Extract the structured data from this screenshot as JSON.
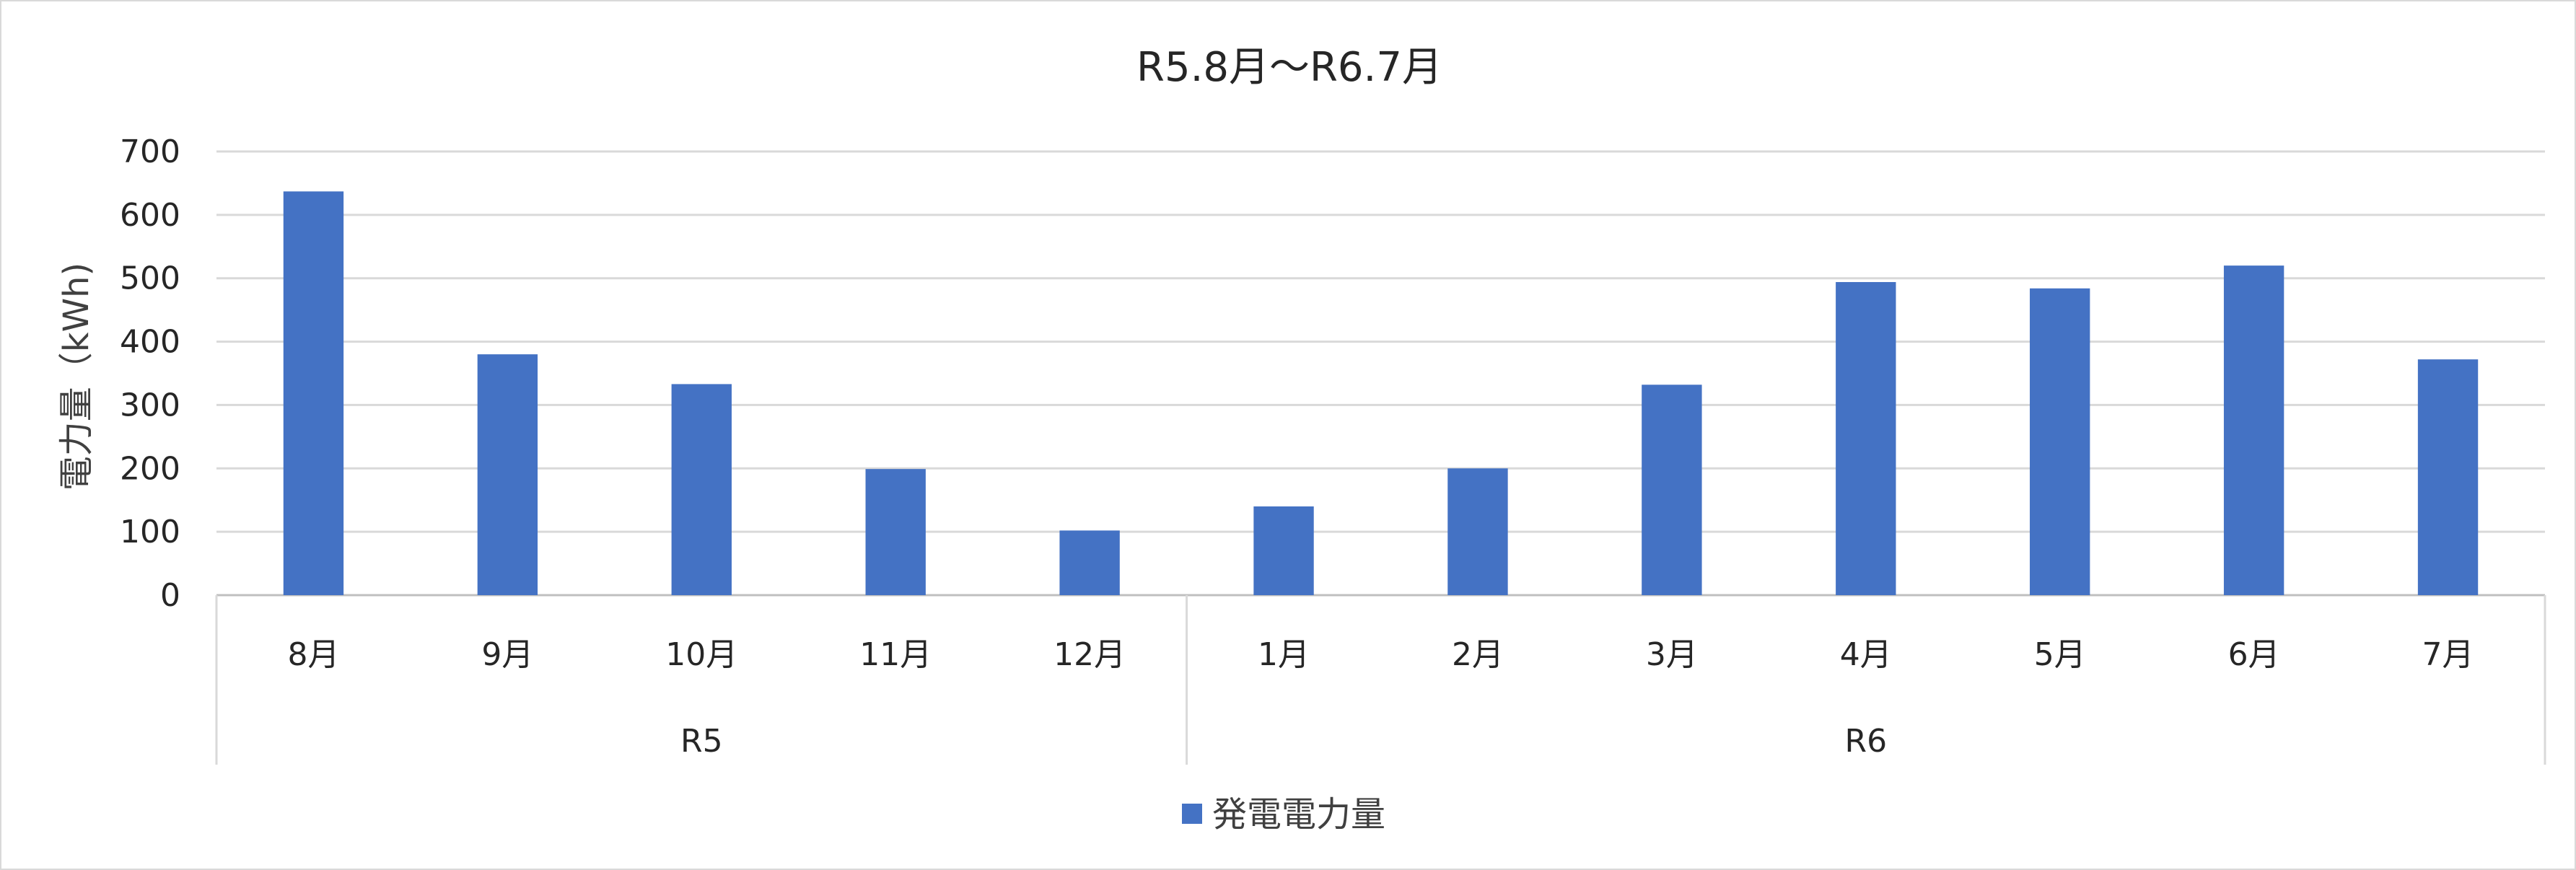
{
  "chart_data": {
    "type": "bar",
    "title": "R5.8月～R6.7月",
    "ylabel": "電力量（kWh)",
    "xlabel": "",
    "ylim": [
      0,
      700
    ],
    "yticks": [
      0,
      100,
      200,
      300,
      400,
      500,
      600,
      700
    ],
    "grid": true,
    "legend_position": "bottom",
    "groups": [
      {
        "label": "R5",
        "categories": [
          "8月",
          "9月",
          "10月",
          "11月",
          "12月"
        ]
      },
      {
        "label": "R6",
        "categories": [
          "1月",
          "2月",
          "3月",
          "4月",
          "5月",
          "6月",
          "7月"
        ]
      }
    ],
    "categories": [
      "8月",
      "9月",
      "10月",
      "11月",
      "12月",
      "1月",
      "2月",
      "3月",
      "4月",
      "5月",
      "6月",
      "7月"
    ],
    "series": [
      {
        "name": "発電電力量",
        "color": "#4472C4",
        "values": [
          637,
          380,
          333,
          199,
          102,
          140,
          200,
          332,
          494,
          484,
          520,
          372
        ]
      }
    ]
  }
}
